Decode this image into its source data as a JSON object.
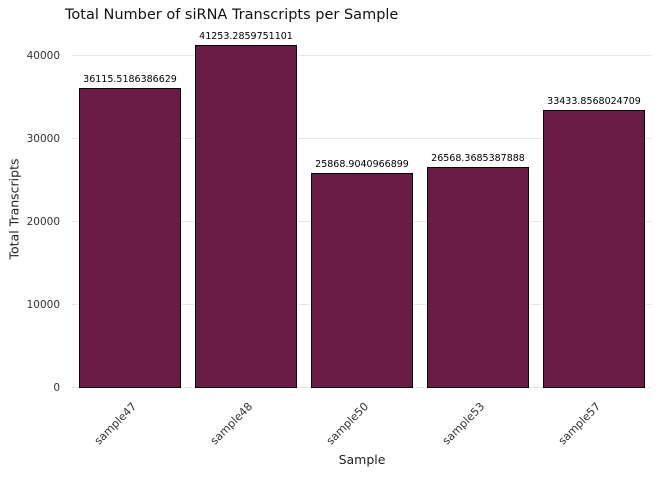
{
  "chart_data": {
    "type": "bar",
    "title": "Total Number of siRNA Transcripts per Sample",
    "xlabel": "Sample",
    "ylabel": "Total Transcripts",
    "categories": [
      "sample47",
      "sample48",
      "sample50",
      "sample53",
      "sample57"
    ],
    "values": [
      36115.5186386629,
      41253.2859751101,
      25868.9040966899,
      26568.3685387888,
      33433.8568024709
    ],
    "value_labels": [
      "36115.5186386629",
      "41253.2859751101",
      "25868.9040966899",
      "26568.3685387888",
      "33433.8568024709"
    ],
    "yticks": [
      0,
      10000,
      20000,
      30000,
      40000
    ],
    "ylim": [
      0,
      43100
    ],
    "bar_color": "#6b1c46",
    "bar_border_color": "#000000",
    "grid_color": "#e6e6e6",
    "grid": true,
    "legend_position": "none"
  }
}
